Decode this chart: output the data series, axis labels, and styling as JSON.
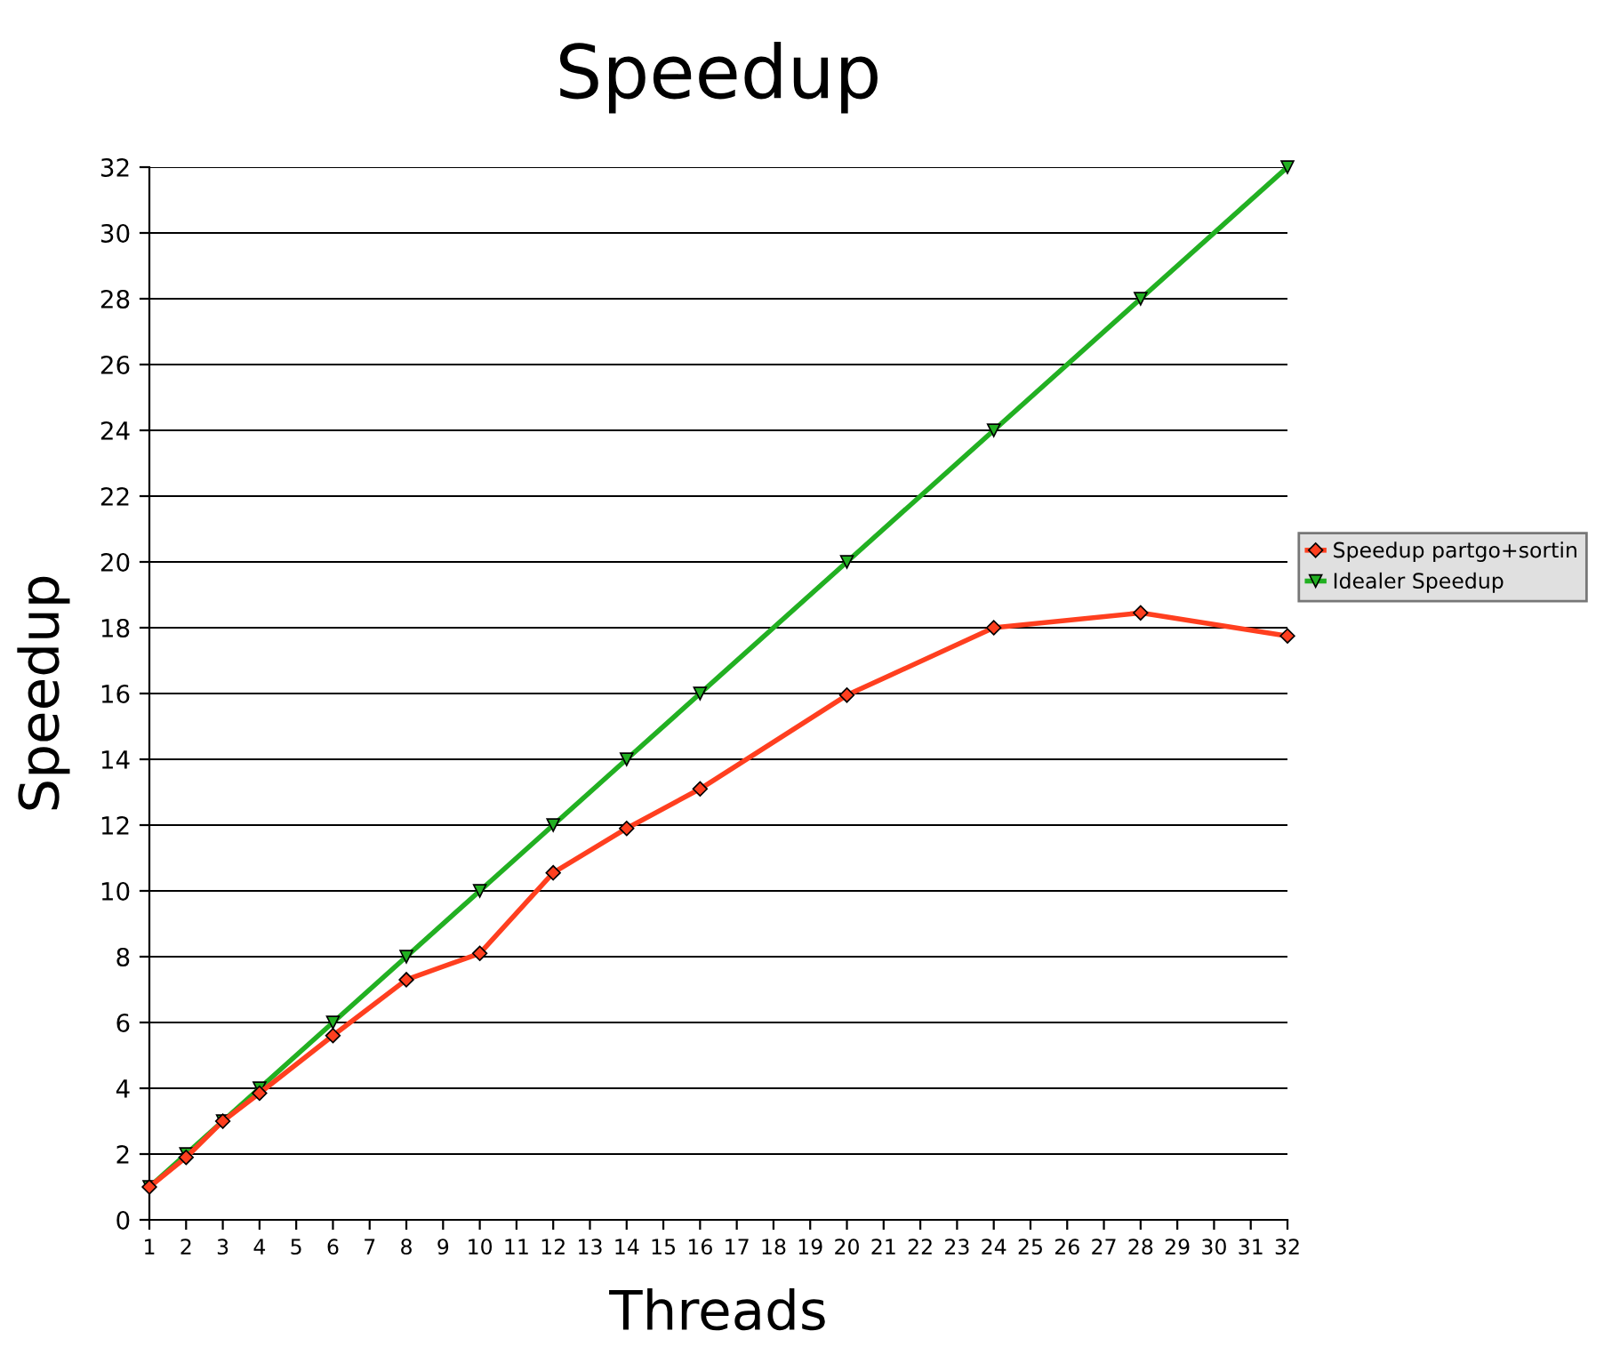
{
  "chart_data": {
    "type": "line",
    "title": "Speedup",
    "xlabel": "Threads",
    "ylabel": "Speedup",
    "x": [
      1,
      2,
      3,
      4,
      6,
      8,
      10,
      12,
      14,
      16,
      20,
      24,
      28,
      32
    ],
    "series": [
      {
        "name": "Speedup partgo+sortin",
        "color": "#ff3f1f",
        "marker": "diamond",
        "values": [
          1,
          1.9,
          3.0,
          3.85,
          5.6,
          7.3,
          8.1,
          10.55,
          11.9,
          13.1,
          15.95,
          18.0,
          18.45,
          17.75
        ]
      },
      {
        "name": "Idealer Speedup",
        "color": "#22b022",
        "marker": "triangle",
        "values": [
          1,
          2,
          3,
          4,
          6,
          8,
          10,
          12,
          14,
          16,
          20,
          24,
          28,
          32
        ]
      }
    ],
    "xlim": [
      1,
      32
    ],
    "xticks": [
      1,
      2,
      3,
      4,
      5,
      6,
      7,
      8,
      9,
      10,
      11,
      12,
      13,
      14,
      15,
      16,
      17,
      18,
      19,
      20,
      21,
      22,
      23,
      24,
      25,
      26,
      27,
      28,
      29,
      30,
      31,
      32
    ],
    "ylim": [
      0,
      32
    ],
    "yticks": [
      0,
      2,
      4,
      6,
      8,
      10,
      12,
      14,
      16,
      18,
      20,
      22,
      24,
      26,
      28,
      30,
      32
    ],
    "grid": "y",
    "legend": "right",
    "line_style": "solid"
  }
}
